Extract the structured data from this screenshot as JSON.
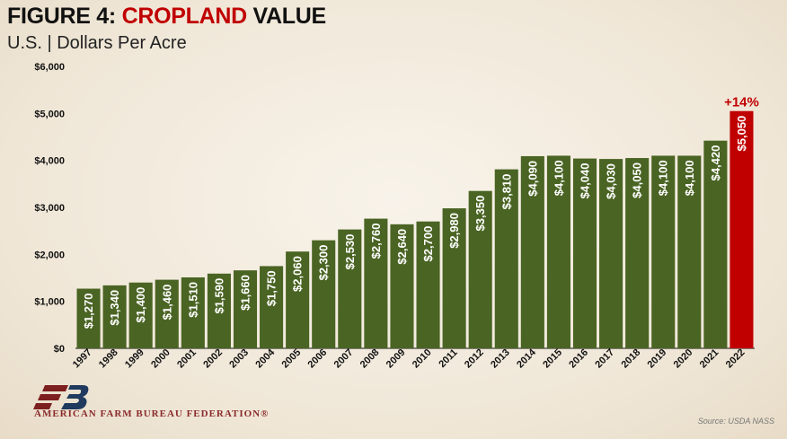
{
  "header": {
    "title_prefix": "FIGURE 4: ",
    "title_highlight": "CROPLAND",
    "title_suffix": " VALUE",
    "subtitle": "U.S. | Dollars Per Acre"
  },
  "footer": {
    "organization": "AMERICAN FARM BUREAU FEDERATION®",
    "source": "Source: USDA NASS"
  },
  "chart_data": {
    "type": "bar",
    "title": "FIGURE 4: CROPLAND VALUE",
    "subtitle": "U.S. | Dollars Per Acre",
    "categories": [
      "1997",
      "1998",
      "1999",
      "2000",
      "2001",
      "2002",
      "2003",
      "2004",
      "2005",
      "2006",
      "2007",
      "2008",
      "2009",
      "2010",
      "2011",
      "2012",
      "2013",
      "2014",
      "2015",
      "2016",
      "2017",
      "2018",
      "2019",
      "2020",
      "2021",
      "2022"
    ],
    "values": [
      1270,
      1340,
      1400,
      1460,
      1510,
      1590,
      1660,
      1750,
      2060,
      2300,
      2530,
      2760,
      2640,
      2700,
      2980,
      3350,
      3810,
      4090,
      4100,
      4040,
      4030,
      4050,
      4100,
      4100,
      4420,
      5050
    ],
    "data_labels": [
      "$1,270",
      "$1,340",
      "$1,400",
      "$1,460",
      "$1,510",
      "$1,590",
      "$1,660",
      "$1,750",
      "$2,060",
      "$2,300",
      "$2,530",
      "$2,760",
      "$2,640",
      "$2,700",
      "$2,980",
      "$3,350",
      "$3,810",
      "$4,090",
      "$4,100",
      "$4,040",
      "$4,030",
      "$4,050",
      "$4,100",
      "$4,100",
      "$4,420",
      "$5,050"
    ],
    "ylim": [
      0,
      6000
    ],
    "y_ticks": [
      0,
      1000,
      2000,
      3000,
      4000,
      5000,
      6000
    ],
    "y_tick_labels": [
      "$0",
      "$1,000",
      "$2,000",
      "$3,000",
      "$4,000",
      "$5,000",
      "$6,000"
    ],
    "xlabel": "",
    "ylabel": "",
    "grid": false,
    "bar_color": "#4a6423",
    "highlight_color": "#c00000",
    "highlight_index": 25,
    "annotation": "+14%"
  }
}
